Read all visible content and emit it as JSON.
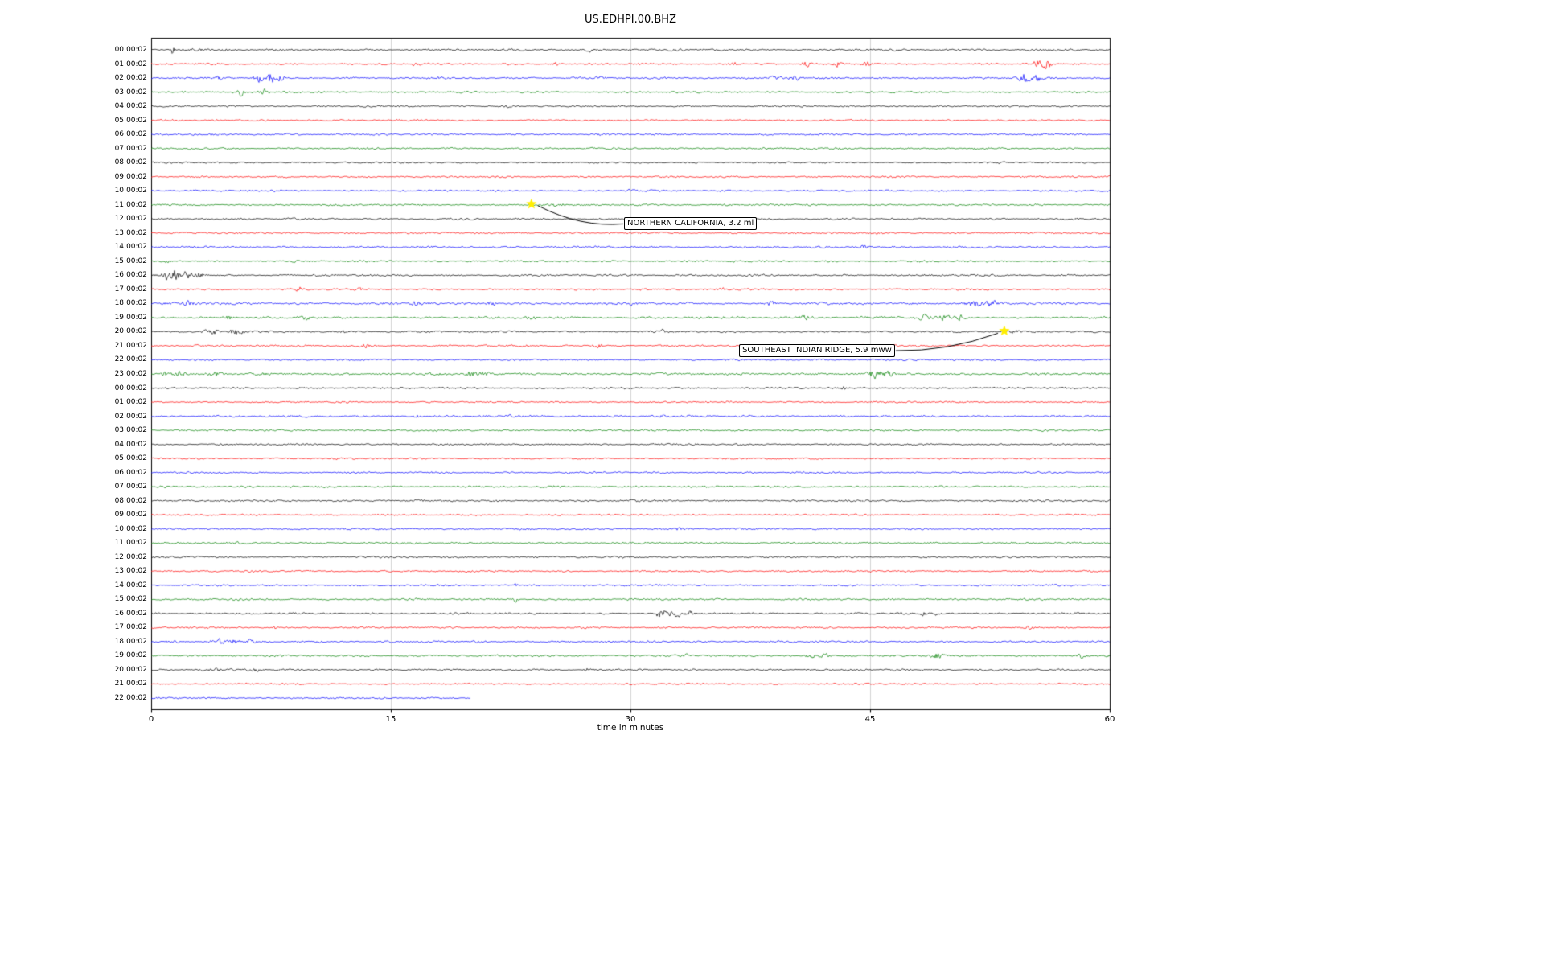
{
  "chart_data": {
    "type": "line",
    "subtype": "seismogram-dayplot",
    "title": "US.EDHPI.00.BHZ",
    "xlabel": "time in minutes",
    "xlim": [
      0,
      60
    ],
    "xticks": [
      0,
      15,
      30,
      45,
      60
    ],
    "grid": true,
    "grid_color": "#c8c8c8",
    "color_cycle": [
      "#000000",
      "#ff0000",
      "#0000ff",
      "#008000"
    ],
    "star_color": "#ffee00",
    "events": [
      {
        "label": "NORTHERN CALIFORNIA, 3.2 ml",
        "row": 11,
        "minute": 23.8,
        "label_row": 12.35,
        "label_minute": 29.6,
        "attach": "left"
      },
      {
        "label": "SOUTHEAST INDIAN RIDGE, 5.9 mww",
        "row": 20,
        "minute": 53.4,
        "label_row": 21.35,
        "label_minute": 36.8,
        "attach": "right"
      }
    ],
    "rows": [
      {
        "label": "00:00:02",
        "color": "#000000",
        "amp": 1.7,
        "bursts": [
          [
            1.35,
            0.12,
            8
          ],
          [
            2.3,
            0.8,
            1.2
          ],
          [
            4.6,
            0.25,
            2
          ],
          [
            27.5,
            0.2,
            2.2
          ]
        ]
      },
      {
        "label": "01:00:02",
        "color": "#ff0000",
        "amp": 1.6,
        "bursts": [
          [
            16.5,
            0.25,
            2
          ],
          [
            25.3,
            0.2,
            2.5
          ],
          [
            36.5,
            0.2,
            2.5
          ],
          [
            41,
            0.3,
            3
          ],
          [
            43,
            0.25,
            4
          ],
          [
            44.8,
            0.3,
            4.5
          ],
          [
            55.6,
            0.3,
            9
          ],
          [
            56.1,
            0.2,
            7
          ]
        ]
      },
      {
        "label": "02:00:02",
        "color": "#0000ff",
        "amp": 1.7,
        "bursts": [
          [
            4.2,
            0.25,
            2.5
          ],
          [
            6.7,
            0.3,
            6
          ],
          [
            7.5,
            0.2,
            9
          ],
          [
            8.1,
            0.25,
            5
          ],
          [
            28,
            0.25,
            2.5
          ],
          [
            39,
            0.4,
            3.5
          ],
          [
            40.3,
            0.3,
            3
          ],
          [
            54.7,
            0.35,
            7
          ],
          [
            55.5,
            0.25,
            5
          ]
        ]
      },
      {
        "label": "03:00:02",
        "color": "#008000",
        "amp": 1.6,
        "bursts": [
          [
            2.0,
            0.15,
            1.5
          ],
          [
            5.6,
            0.2,
            6
          ],
          [
            7.1,
            0.25,
            4.5
          ]
        ]
      },
      {
        "label": "04:00:02",
        "color": "#000000",
        "amp": 1.5,
        "bursts": [
          [
            22.3,
            0.35,
            2
          ]
        ]
      },
      {
        "label": "05:00:02",
        "color": "#ff0000",
        "amp": 1.5,
        "bursts": []
      },
      {
        "label": "06:00:02",
        "color": "#0000ff",
        "amp": 1.6,
        "bursts": []
      },
      {
        "label": "07:00:02",
        "color": "#008000",
        "amp": 1.6,
        "bursts": []
      },
      {
        "label": "08:00:02",
        "color": "#000000",
        "amp": 1.4,
        "bursts": []
      },
      {
        "label": "09:00:02",
        "color": "#ff0000",
        "amp": 1.5,
        "bursts": []
      },
      {
        "label": "10:00:02",
        "color": "#0000ff",
        "amp": 1.6,
        "bursts": [
          [
            30,
            0.3,
            1.5
          ]
        ]
      },
      {
        "label": "11:00:02",
        "color": "#008000",
        "amp": 1.6,
        "bursts": [
          [
            25.2,
            0.7,
            1.6
          ]
        ]
      },
      {
        "label": "12:00:02",
        "color": "#000000",
        "amp": 1.5,
        "bursts": []
      },
      {
        "label": "13:00:02",
        "color": "#ff0000",
        "amp": 1.5,
        "bursts": []
      },
      {
        "label": "14:00:02",
        "color": "#0000ff",
        "amp": 1.7,
        "bursts": [
          [
            44.6,
            0.25,
            2.5
          ]
        ]
      },
      {
        "label": "15:00:02",
        "color": "#008000",
        "amp": 1.6,
        "bursts": [
          [
            1.0,
            0.25,
            1.8
          ]
        ]
      },
      {
        "label": "16:00:02",
        "color": "#000000",
        "amp": 1.7,
        "bursts": [
          [
            0.9,
            0.2,
            8
          ],
          [
            1.5,
            0.3,
            10
          ],
          [
            2.2,
            0.4,
            5
          ],
          [
            3.0,
            0.3,
            3.5
          ]
        ]
      },
      {
        "label": "17:00:02",
        "color": "#ff0000",
        "amp": 1.6,
        "bursts": [
          [
            9.4,
            0.3,
            5
          ],
          [
            13,
            0.15,
            2
          ],
          [
            30.8,
            0.25,
            2.8
          ],
          [
            35.8,
            0.25,
            2.8
          ]
        ]
      },
      {
        "label": "18:00:02",
        "color": "#0000ff",
        "amp": 2.0,
        "bursts": [
          [
            2.2,
            0.4,
            3.5
          ],
          [
            16.6,
            0.3,
            2.8
          ],
          [
            21.3,
            0.25,
            3.5
          ],
          [
            30.2,
            0.25,
            3
          ],
          [
            38.8,
            0.25,
            2.8
          ],
          [
            51.5,
            0.5,
            4.5
          ],
          [
            52.6,
            0.3,
            4.5
          ]
        ]
      },
      {
        "label": "19:00:02",
        "color": "#008000",
        "amp": 1.9,
        "bursts": [
          [
            4.9,
            0.3,
            3.5
          ],
          [
            9.7,
            0.3,
            3.5
          ],
          [
            23.8,
            0.25,
            3.5
          ],
          [
            41,
            0.4,
            3.5
          ],
          [
            48.4,
            0.4,
            4.5
          ],
          [
            49.6,
            0.3,
            4.5
          ],
          [
            50.6,
            0.25,
            3.5
          ]
        ]
      },
      {
        "label": "20:00:02",
        "color": "#000000",
        "amp": 1.6,
        "bursts": [
          [
            3.8,
            0.4,
            4.5
          ],
          [
            5.3,
            0.4,
            5
          ],
          [
            12,
            0.15,
            2
          ],
          [
            32,
            0.15,
            2.2
          ],
          [
            54,
            0.6,
            1.6
          ]
        ]
      },
      {
        "label": "21:00:02",
        "color": "#ff0000",
        "amp": 1.6,
        "bursts": [
          [
            2.8,
            0.15,
            1.8
          ],
          [
            13.4,
            0.25,
            3.5
          ],
          [
            28,
            0.25,
            3
          ]
        ]
      },
      {
        "label": "22:00:02",
        "color": "#0000ff",
        "amp": 1.5,
        "bursts": [
          [
            46,
            0.15,
            1.8
          ]
        ]
      },
      {
        "label": "23:00:02",
        "color": "#008000",
        "amp": 2.0,
        "bursts": [
          [
            0.9,
            0.35,
            4
          ],
          [
            1.8,
            0.3,
            3.5
          ],
          [
            4.0,
            0.35,
            4.5
          ],
          [
            20,
            0.4,
            4.5
          ],
          [
            20.9,
            0.25,
            3.5
          ],
          [
            45.3,
            0.4,
            6
          ],
          [
            46.1,
            0.25,
            4.5
          ]
        ]
      },
      {
        "label": "00:00:02",
        "color": "#000000",
        "amp": 1.6,
        "bursts": [
          [
            9.3,
            0.15,
            2.2
          ],
          [
            43.3,
            0.12,
            3
          ]
        ]
      },
      {
        "label": "01:00:02",
        "color": "#ff0000",
        "amp": 1.5,
        "bursts": []
      },
      {
        "label": "02:00:02",
        "color": "#0000ff",
        "amp": 1.7,
        "bursts": [
          [
            16.6,
            0.25,
            2.5
          ],
          [
            22.4,
            0.15,
            2
          ],
          [
            32,
            0.15,
            2
          ]
        ]
      },
      {
        "label": "03:00:02",
        "color": "#008000",
        "amp": 1.6,
        "bursts": []
      },
      {
        "label": "04:00:02",
        "color": "#000000",
        "amp": 1.5,
        "bursts": [
          [
            15.3,
            0.15,
            1.8
          ],
          [
            25,
            0.15,
            1.8
          ]
        ]
      },
      {
        "label": "05:00:02",
        "color": "#ff0000",
        "amp": 1.5,
        "bursts": []
      },
      {
        "label": "06:00:02",
        "color": "#0000ff",
        "amp": 1.6,
        "bursts": [
          [
            12.8,
            0.15,
            2
          ]
        ]
      },
      {
        "label": "07:00:02",
        "color": "#008000",
        "amp": 1.7,
        "bursts": []
      },
      {
        "label": "08:00:02",
        "color": "#000000",
        "amp": 1.7,
        "bursts": []
      },
      {
        "label": "09:00:02",
        "color": "#ff0000",
        "amp": 1.5,
        "bursts": []
      },
      {
        "label": "10:00:02",
        "color": "#0000ff",
        "amp": 1.6,
        "bursts": [
          [
            33,
            0.25,
            2
          ]
        ]
      },
      {
        "label": "11:00:02",
        "color": "#008000",
        "amp": 1.6,
        "bursts": []
      },
      {
        "label": "12:00:02",
        "color": "#000000",
        "amp": 1.6,
        "bursts": []
      },
      {
        "label": "13:00:02",
        "color": "#ff0000",
        "amp": 1.5,
        "bursts": []
      },
      {
        "label": "14:00:02",
        "color": "#0000ff",
        "amp": 1.6,
        "bursts": [
          [
            22.8,
            0.15,
            2
          ]
        ]
      },
      {
        "label": "15:00:02",
        "color": "#008000",
        "amp": 1.6,
        "bursts": [
          [
            22.8,
            0.12,
            3.5
          ]
        ]
      },
      {
        "label": "16:00:02",
        "color": "#000000",
        "amp": 1.6,
        "bursts": [
          [
            31.9,
            0.35,
            7
          ],
          [
            32.8,
            0.35,
            5
          ],
          [
            33.8,
            0.25,
            3.5
          ],
          [
            48.3,
            0.15,
            3.5
          ],
          [
            49.1,
            0.15,
            2.5
          ]
        ]
      },
      {
        "label": "17:00:02",
        "color": "#ff0000",
        "amp": 1.6,
        "bursts": [
          [
            7.8,
            0.15,
            2
          ],
          [
            55,
            0.25,
            2.5
          ]
        ]
      },
      {
        "label": "18:00:02",
        "color": "#0000ff",
        "amp": 1.7,
        "bursts": [
          [
            4.3,
            0.35,
            3.5
          ],
          [
            5.3,
            0.35,
            3.5
          ],
          [
            6.1,
            0.25,
            2.5
          ],
          [
            10.5,
            0.15,
            2
          ]
        ]
      },
      {
        "label": "19:00:02",
        "color": "#008000",
        "amp": 1.7,
        "bursts": [
          [
            33.5,
            0.15,
            2
          ],
          [
            41.3,
            0.35,
            4.5
          ],
          [
            42.2,
            0.25,
            3.5
          ],
          [
            49.2,
            0.35,
            4.5
          ],
          [
            58.2,
            0.3,
            3.5
          ]
        ]
      },
      {
        "label": "20:00:02",
        "color": "#000000",
        "amp": 1.6,
        "bursts": [
          [
            4.0,
            0.25,
            2.8
          ],
          [
            6.5,
            0.25,
            2.8
          ],
          [
            27.3,
            0.18,
            2.8
          ]
        ]
      },
      {
        "label": "21:00:02",
        "color": "#ff0000",
        "amp": 1.5,
        "bursts": []
      },
      {
        "label": "22:00:02",
        "color": "#0000ff",
        "amp": 1.6,
        "end": 20,
        "bursts": []
      }
    ]
  }
}
